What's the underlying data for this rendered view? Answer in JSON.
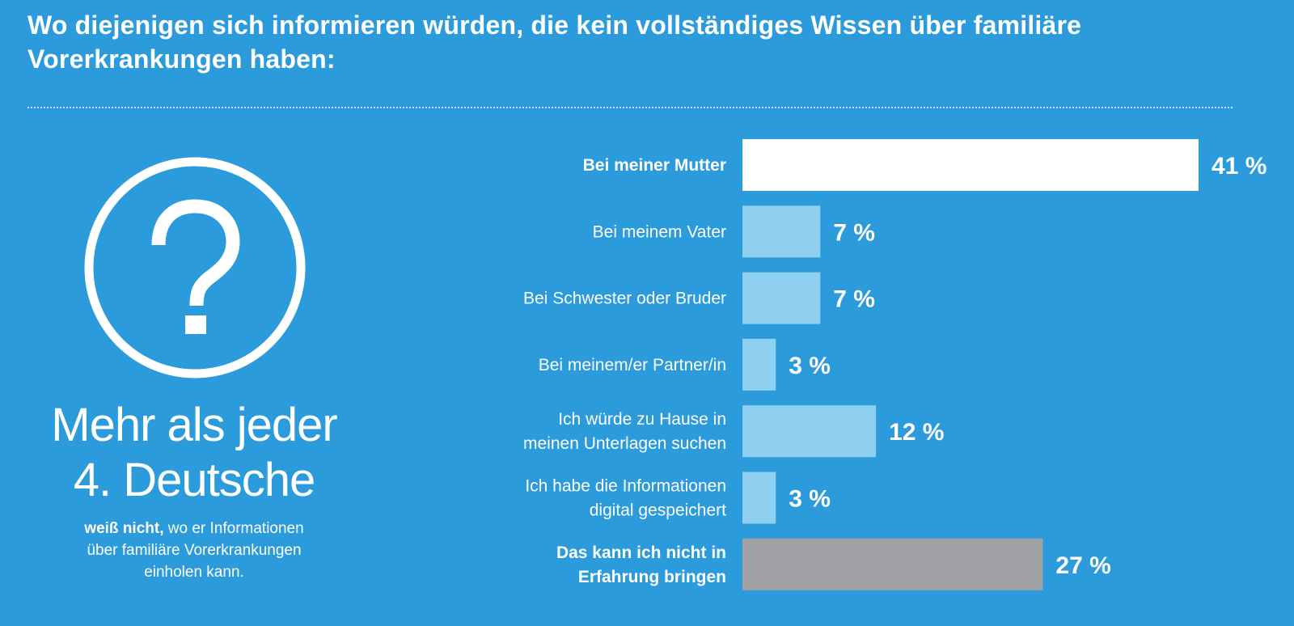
{
  "header": {
    "title": "Wo diejenigen sich informieren würden, die kein vollständiges Wissen über familiäre Vorerkrankungen haben:"
  },
  "highlight": {
    "icon": "question-circle-icon",
    "headline_line1": "Mehr als jeder",
    "headline_line2": "4. Deutsche",
    "subtext_strong": "weiß nicht,",
    "subtext_rest_line1": " wo er Informationen",
    "subtext_line2": "über familiäre Vorerkrankungen",
    "subtext_line3": "einholen kann."
  },
  "colors": {
    "background": "#2b9bdc",
    "bar_highlight": "#ffffff",
    "bar_default": "#8fd0f0",
    "bar_neutral": "#a1a2a5"
  },
  "chart_data": {
    "type": "bar",
    "orientation": "horizontal",
    "unit": "%",
    "categories": [
      [
        "Bei meiner Mutter"
      ],
      [
        "Bei meinem Vater"
      ],
      [
        "Bei Schwester oder Bruder"
      ],
      [
        "Bei meinem/er Partner/in"
      ],
      [
        "Ich würde zu Hause in",
        "meinen Unterlagen suchen"
      ],
      [
        "Ich habe die Informationen",
        "digital gespeichert"
      ],
      [
        "Das kann ich nicht in",
        "Erfahrung bringen"
      ]
    ],
    "values": [
      41,
      7,
      7,
      3,
      12,
      3,
      27
    ],
    "value_labels": [
      "41 %",
      "7 %",
      "7 %",
      "3 %",
      "12 %",
      "3 %",
      "27 %"
    ],
    "bold_labels": [
      true,
      false,
      false,
      false,
      false,
      false,
      true
    ],
    "bar_styles": [
      "highlight",
      "default",
      "default",
      "default",
      "default",
      "default",
      "neutral"
    ],
    "xlim": [
      0,
      41
    ],
    "grid": false,
    "legend": "none"
  }
}
